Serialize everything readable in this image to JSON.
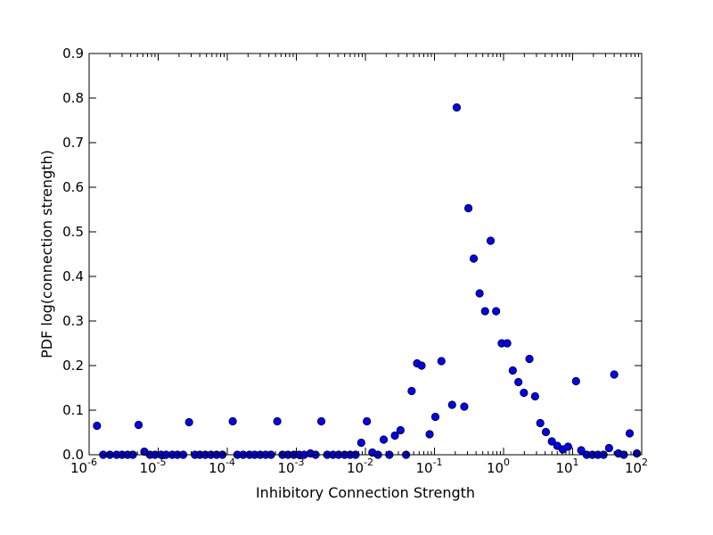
{
  "chart_data": {
    "type": "scatter",
    "xlabel": "Inhibitory Connection Strength",
    "ylabel": "PDF log(connection strength)",
    "x_scale": "log",
    "xlim": [
      1e-06,
      100
    ],
    "ylim": [
      0,
      0.9
    ],
    "x_ticks": [
      {
        "value": 1e-06,
        "base": "10",
        "exp": "-6"
      },
      {
        "value": 1e-05,
        "base": "10",
        "exp": "-5"
      },
      {
        "value": 0.0001,
        "base": "10",
        "exp": "-4"
      },
      {
        "value": 0.001,
        "base": "10",
        "exp": "-3"
      },
      {
        "value": 0.01,
        "base": "10",
        "exp": "-2"
      },
      {
        "value": 0.1,
        "base": "10",
        "exp": "-1"
      },
      {
        "value": 1,
        "base": "10",
        "exp": "0"
      },
      {
        "value": 10,
        "base": "10",
        "exp": "1"
      },
      {
        "value": 100,
        "base": "10",
        "exp": "2"
      }
    ],
    "y_ticks": [
      "0.0",
      "0.1",
      "0.2",
      "0.3",
      "0.4",
      "0.5",
      "0.6",
      "0.7",
      "0.8",
      "0.9"
    ],
    "grid": false,
    "marker_color": "#0000ff",
    "points": [
      [
        1.3e-06,
        0.065
      ],
      [
        1.6e-06,
        0.0
      ],
      [
        2e-06,
        0.0
      ],
      [
        2.5e-06,
        0.0
      ],
      [
        3e-06,
        0.0
      ],
      [
        3.6e-06,
        0.0
      ],
      [
        4.3e-06,
        0.0
      ],
      [
        5.2e-06,
        0.067
      ],
      [
        6.3e-06,
        0.007
      ],
      [
        7.6e-06,
        0.0
      ],
      [
        9e-06,
        0.0
      ],
      [
        1.1e-05,
        0.0
      ],
      [
        1.3e-05,
        0.0
      ],
      [
        1.6e-05,
        0.0
      ],
      [
        1.9e-05,
        0.0
      ],
      [
        2.3e-05,
        0.0
      ],
      [
        2.8e-05,
        0.073
      ],
      [
        3.4e-05,
        0.0
      ],
      [
        4e-05,
        0.0
      ],
      [
        4.8e-05,
        0.0
      ],
      [
        5.8e-05,
        0.0
      ],
      [
        7e-05,
        0.0
      ],
      [
        8.5e-05,
        0.0
      ],
      [
        0.00012,
        0.075
      ],
      [
        0.00014,
        0.0
      ],
      [
        0.00017,
        0.0
      ],
      [
        0.00021,
        0.0
      ],
      [
        0.00025,
        0.0
      ],
      [
        0.0003,
        0.0
      ],
      [
        0.00036,
        0.0
      ],
      [
        0.00043,
        0.0
      ],
      [
        0.00053,
        0.075
      ],
      [
        0.00063,
        0.0
      ],
      [
        0.00076,
        0.0
      ],
      [
        0.00092,
        0.0
      ],
      [
        0.0011,
        0.0
      ],
      [
        0.0013,
        0.0
      ],
      [
        0.0016,
        0.003
      ],
      [
        0.0019,
        0.0
      ],
      [
        0.0023,
        0.075
      ],
      [
        0.0028,
        0.0
      ],
      [
        0.0034,
        0.0
      ],
      [
        0.0041,
        0.0
      ],
      [
        0.005,
        0.0
      ],
      [
        0.006,
        0.0
      ],
      [
        0.0072,
        0.0
      ],
      [
        0.0087,
        0.027
      ],
      [
        0.0105,
        0.075
      ],
      [
        0.0126,
        0.005
      ],
      [
        0.0152,
        0.0
      ],
      [
        0.0184,
        0.034
      ],
      [
        0.0222,
        0.0
      ],
      [
        0.0267,
        0.043
      ],
      [
        0.0322,
        0.055
      ],
      [
        0.0388,
        0.0
      ],
      [
        0.0467,
        0.143
      ],
      [
        0.056,
        0.205
      ],
      [
        0.065,
        0.2
      ],
      [
        0.085,
        0.046
      ],
      [
        0.103,
        0.085
      ],
      [
        0.126,
        0.21
      ],
      [
        0.18,
        0.112
      ],
      [
        0.21,
        0.779
      ],
      [
        0.27,
        0.108
      ],
      [
        0.31,
        0.553
      ],
      [
        0.37,
        0.44
      ],
      [
        0.45,
        0.362
      ],
      [
        0.54,
        0.322
      ],
      [
        0.65,
        0.48
      ],
      [
        0.78,
        0.322
      ],
      [
        0.94,
        0.25
      ],
      [
        1.13,
        0.25
      ],
      [
        1.36,
        0.189
      ],
      [
        1.64,
        0.163
      ],
      [
        1.97,
        0.139
      ],
      [
        2.37,
        0.215
      ],
      [
        2.86,
        0.131
      ],
      [
        3.4,
        0.071
      ],
      [
        4.1,
        0.051
      ],
      [
        5.0,
        0.03
      ],
      [
        6.0,
        0.02
      ],
      [
        7.2,
        0.012
      ],
      [
        8.6,
        0.018
      ],
      [
        11.2,
        0.165
      ],
      [
        13.3,
        0.01
      ],
      [
        16.0,
        0.0
      ],
      [
        19.3,
        0.0
      ],
      [
        23.2,
        0.0
      ],
      [
        28.0,
        0.0
      ],
      [
        33.7,
        0.015
      ],
      [
        40.0,
        0.18
      ],
      [
        46.0,
        0.003
      ],
      [
        55.0,
        0.0
      ],
      [
        67.0,
        0.048
      ],
      [
        85.0,
        0.003
      ]
    ]
  }
}
